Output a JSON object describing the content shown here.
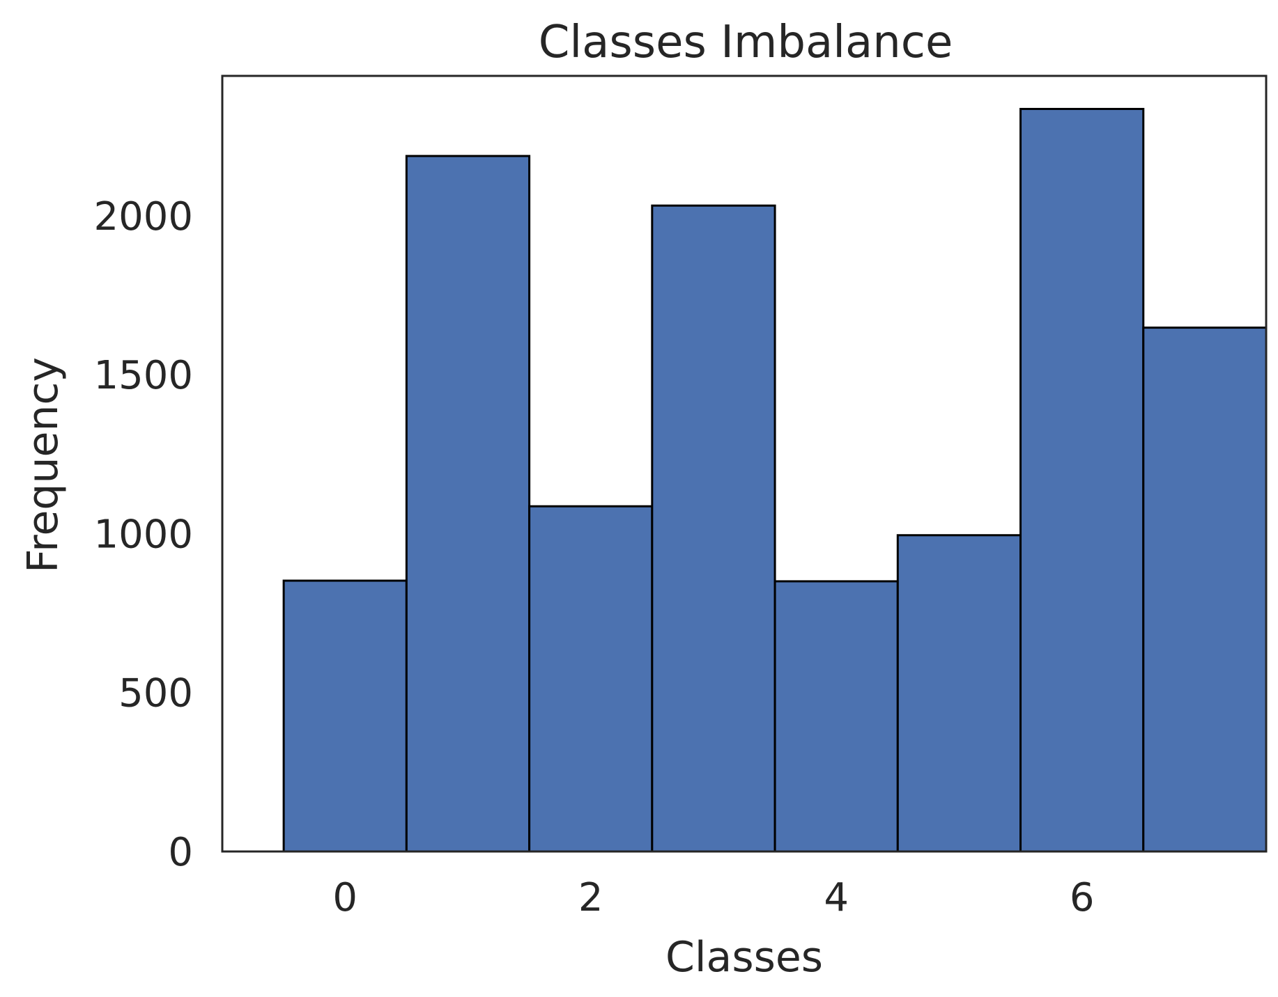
{
  "chart_data": {
    "type": "bar",
    "title": "Classes Imbalance",
    "xlabel": "Classes",
    "ylabel": "Frequency",
    "categories": [
      "0",
      "1",
      "2",
      "3",
      "4",
      "5",
      "6",
      "7"
    ],
    "values": [
      852,
      2188,
      1086,
      2032,
      850,
      995,
      2336,
      1648
    ],
    "xlim": [
      -1,
      7.5
    ],
    "ylim": [
      0,
      2440
    ],
    "x_ticks": [
      0,
      2,
      4,
      6
    ],
    "x_tick_labels": [
      "0",
      "2",
      "4",
      "6"
    ],
    "y_ticks": [
      0,
      500,
      1000,
      1500,
      2000
    ],
    "y_tick_labels": [
      "0",
      "500",
      "1000",
      "1500",
      "2000"
    ],
    "grid": false,
    "bar_color": "#4c72b0",
    "bar_edge_color": "#000000",
    "axes_color": "#262626"
  }
}
